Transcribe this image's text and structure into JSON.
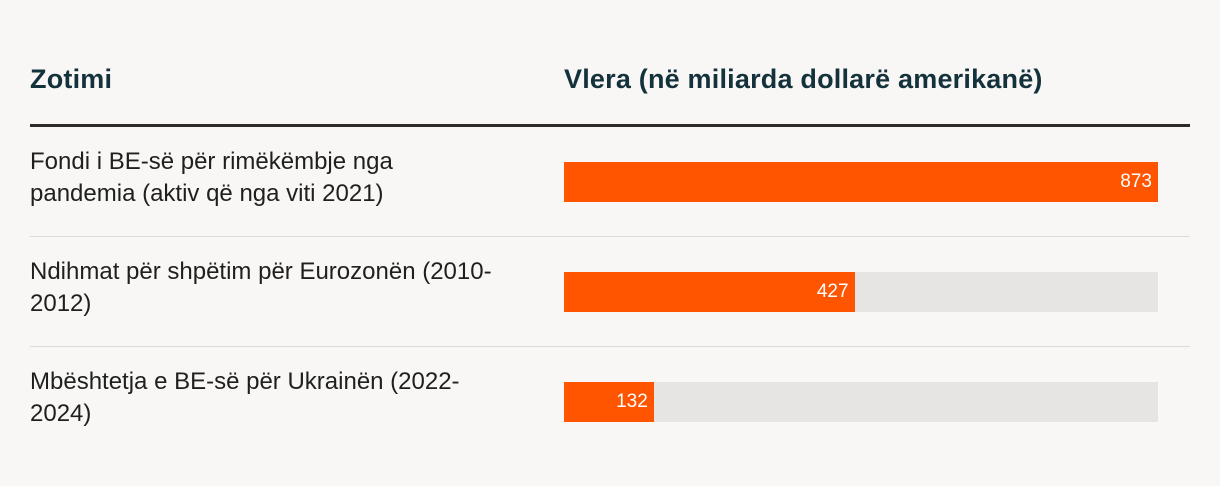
{
  "chart_data": {
    "type": "bar",
    "orientation": "horizontal",
    "title": "",
    "xlabel": "Vlera (në miliarda dollarë amerikanë)",
    "ylabel": "Zotimi",
    "xlim": [
      0,
      873
    ],
    "categories": [
      "Fondi i BE-së për rimëkëmbje nga pandemia (aktiv që nga viti 2021)",
      "Ndihmat për shpëtim për Eurozonën (2010-2012)",
      "Mbështetja e BE-së për Ukrainën (2022-2024)"
    ],
    "values": [
      873,
      427,
      132
    ],
    "value_labels": [
      "873",
      "427",
      "132"
    ],
    "bar_color": "#ff5500",
    "track_color": "#e6e5e3"
  },
  "table": {
    "col_commitment": "Zotimi",
    "col_value": "Vlera (në miliarda dollarë amerikanë)"
  }
}
